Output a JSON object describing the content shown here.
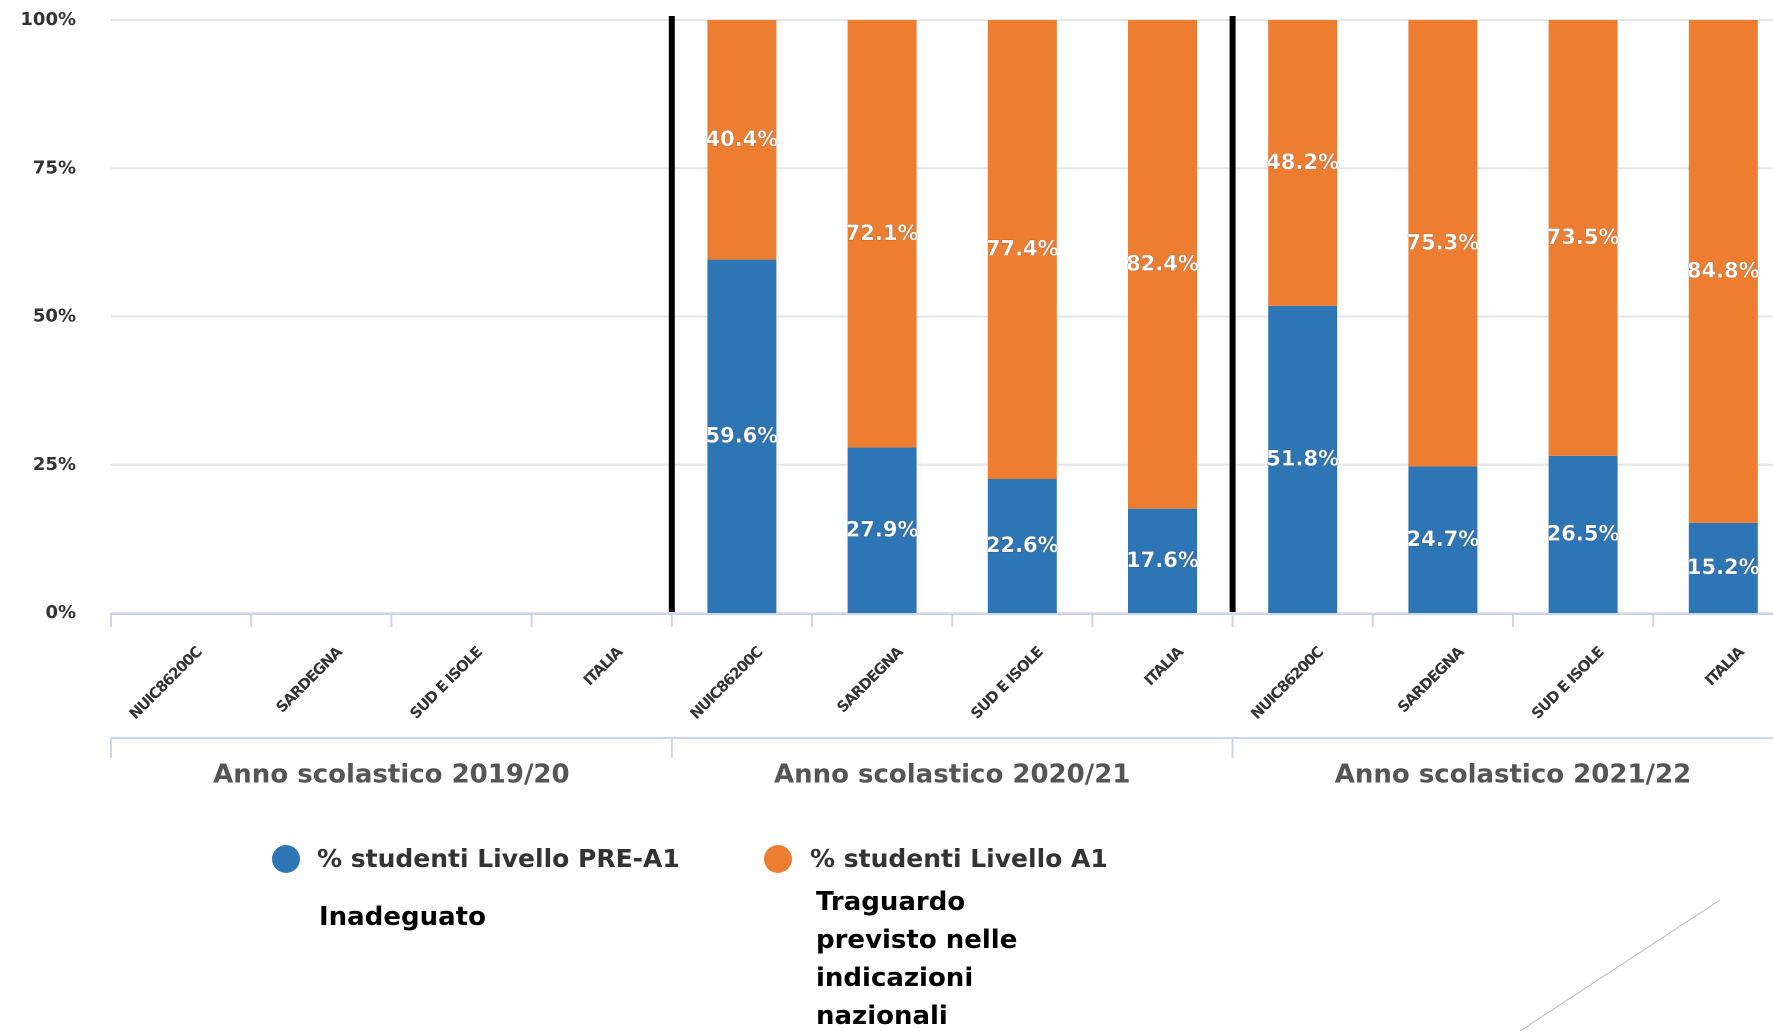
{
  "chart_data": {
    "type": "stacked_bar",
    "categories": [
      "NUIC86200C",
      "SARDEGNA",
      "SUD E ISOLE",
      "ITALIA",
      "NUIC86200C",
      "SARDEGNA",
      "SUD E ISOLE",
      "ITALIA",
      "NUIC86200C",
      "SARDEGNA",
      "SUD E ISOLE",
      "ITALIA"
    ],
    "groups": [
      "Anno scolastico 2019/20",
      "Anno scolastico 2020/21",
      "Anno scolastico 2021/22"
    ],
    "series": [
      {
        "name": "% studenti Livello PRE-A1",
        "color": "#2e75b6",
        "values": [
          null,
          null,
          null,
          null,
          59.6,
          27.9,
          22.6,
          17.6,
          51.8,
          24.7,
          26.5,
          15.2
        ],
        "value_labels": [
          null,
          null,
          null,
          null,
          "59.6%",
          "27.9%",
          "22.6%",
          "17.6%",
          "51.8%",
          "24.7%",
          "26.5%",
          "15.2%"
        ]
      },
      {
        "name": "% studenti Livello A1",
        "color": "#ed7d31",
        "values": [
          null,
          null,
          null,
          null,
          40.4,
          72.1,
          77.4,
          82.4,
          48.2,
          75.3,
          73.5,
          84.8
        ],
        "value_labels": [
          null,
          null,
          null,
          null,
          "40.4%",
          "72.1%",
          "77.4%",
          "82.4%",
          "48.2%",
          "75.3%",
          "73.5%",
          "84.8%"
        ]
      }
    ],
    "ylim": [
      0,
      100
    ],
    "yticks": [
      {
        "value": 0,
        "label": "0%"
      },
      {
        "value": 25,
        "label": "25%"
      },
      {
        "value": 50,
        "label": "50%"
      },
      {
        "value": 75,
        "label": "75%"
      },
      {
        "value": 100,
        "label": "100%"
      }
    ],
    "grid": true,
    "annotations": [
      "Inadeguato",
      "Traguardo previsto nelle indicazioni nazionali"
    ]
  }
}
